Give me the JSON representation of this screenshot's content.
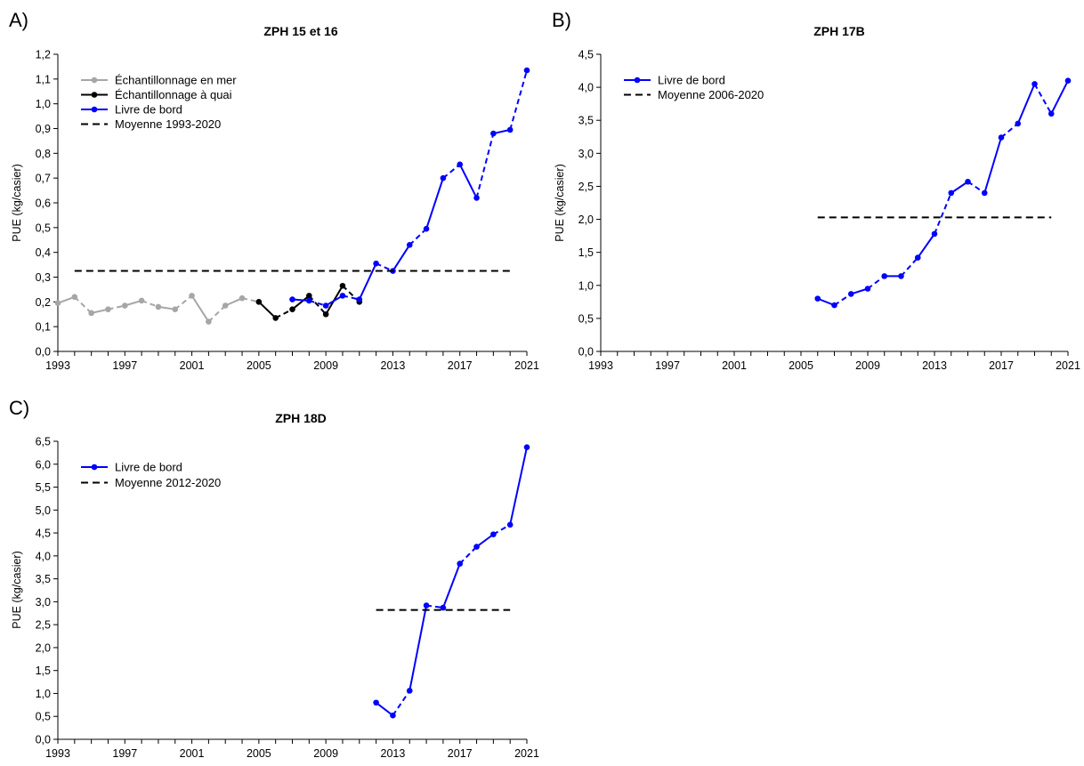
{
  "chart_data": [
    {
      "type": "line",
      "panel_label": "A)",
      "title": "ZPH 15 et 16",
      "xlabel": "",
      "ylabel": "PUE (kg/casier)",
      "xlim": [
        1993,
        2021
      ],
      "ylim": [
        0,
        1.2
      ],
      "xticks": [
        1993,
        1994,
        1995,
        1996,
        1997,
        1998,
        1999,
        2000,
        2001,
        2002,
        2003,
        2004,
        2005,
        2006,
        2007,
        2008,
        2009,
        2010,
        2011,
        2012,
        2013,
        2014,
        2015,
        2016,
        2017,
        2018,
        2019,
        2020,
        2021
      ],
      "xtick_labels": [
        "1993",
        "1997",
        "2001",
        "2005",
        "2009",
        "2013",
        "2017",
        "2021"
      ],
      "xtick_label_values": [
        1993,
        1997,
        2001,
        2005,
        2009,
        2013,
        2017,
        2021
      ],
      "yticks": [
        0,
        0.1,
        0.2,
        0.3,
        0.4,
        0.5,
        0.6,
        0.7,
        0.8,
        0.9,
        1.0,
        1.1,
        1.2
      ],
      "ytick_labels": [
        "0,0",
        "0,1",
        "0,2",
        "0,3",
        "0,4",
        "0,5",
        "0,6",
        "0,7",
        "0,8",
        "0,9",
        "1,0",
        "1,1",
        "1,2"
      ],
      "legend_position": "top-left",
      "series": [
        {
          "name": "Échantillonnage en mer",
          "color": "#a6a6a6",
          "marker": "circle",
          "style": "mixed",
          "x": [
            1993,
            1994,
            1995,
            1996,
            1997,
            1998,
            1999,
            2000,
            2001,
            2002,
            2003,
            2004,
            2005
          ],
          "y": [
            0.195,
            0.22,
            0.155,
            0.17,
            0.185,
            0.205,
            0.18,
            0.17,
            0.225,
            0.12,
            0.185,
            0.215,
            0.2
          ]
        },
        {
          "name": "Échantillonnage à quai",
          "color": "#000000",
          "marker": "circle",
          "style": "mixed",
          "x": [
            2005,
            2006,
            2007,
            2008,
            2009,
            2010,
            2011
          ],
          "y": [
            0.2,
            0.135,
            0.17,
            0.225,
            0.15,
            0.265,
            0.2
          ]
        },
        {
          "name": "Livre de bord",
          "color": "#0000ff",
          "marker": "circle",
          "style": "mixed",
          "x": [
            2007,
            2008,
            2009,
            2010,
            2011,
            2012,
            2013,
            2014,
            2015,
            2016,
            2017,
            2018,
            2019,
            2020,
            2021
          ],
          "y": [
            0.21,
            0.205,
            0.185,
            0.225,
            0.21,
            0.355,
            0.325,
            0.43,
            0.495,
            0.7,
            0.755,
            0.62,
            0.88,
            0.895,
            1.135
          ]
        },
        {
          "name": "Moyenne 1993-2020",
          "color": "#000000",
          "marker": "none",
          "style": "dashed",
          "x": [
            1994,
            2020
          ],
          "y": [
            0.325,
            0.325
          ]
        }
      ]
    },
    {
      "type": "line",
      "panel_label": "B)",
      "title": "ZPH 17B",
      "xlabel": "",
      "ylabel": "PUE (kg/casier)",
      "xlim": [
        1993,
        2021
      ],
      "ylim": [
        0,
        4.5
      ],
      "xticks": [
        1993,
        1994,
        1995,
        1996,
        1997,
        1998,
        1999,
        2000,
        2001,
        2002,
        2003,
        2004,
        2005,
        2006,
        2007,
        2008,
        2009,
        2010,
        2011,
        2012,
        2013,
        2014,
        2015,
        2016,
        2017,
        2018,
        2019,
        2020,
        2021
      ],
      "xtick_labels": [
        "1993",
        "1997",
        "2001",
        "2005",
        "2009",
        "2013",
        "2017",
        "2021"
      ],
      "xtick_label_values": [
        1993,
        1997,
        2001,
        2005,
        2009,
        2013,
        2017,
        2021
      ],
      "yticks": [
        0,
        0.5,
        1.0,
        1.5,
        2.0,
        2.5,
        3.0,
        3.5,
        4.0,
        4.5
      ],
      "ytick_labels": [
        "0,0",
        "0,5",
        "1,0",
        "1,5",
        "2,0",
        "2,5",
        "3,0",
        "3,5",
        "4,0",
        "4,5"
      ],
      "legend_position": "top-left",
      "series": [
        {
          "name": "Livre de bord",
          "color": "#0000ff",
          "marker": "circle",
          "style": "mixed",
          "x": [
            2006,
            2007,
            2008,
            2009,
            2010,
            2011,
            2012,
            2013,
            2014,
            2015,
            2016,
            2017,
            2018,
            2019,
            2020,
            2021
          ],
          "y": [
            0.8,
            0.7,
            0.87,
            0.95,
            1.14,
            1.14,
            1.42,
            1.78,
            2.4,
            2.57,
            2.4,
            3.24,
            3.45,
            4.05,
            3.6,
            4.1
          ]
        },
        {
          "name": "Moyenne 2006-2020",
          "color": "#000000",
          "marker": "none",
          "style": "dashed",
          "x": [
            2006,
            2020
          ],
          "y": [
            2.03,
            2.03
          ]
        }
      ]
    },
    {
      "type": "line",
      "panel_label": "C)",
      "title": "ZPH 18D",
      "xlabel": "",
      "ylabel": "PUE (kg/casier)",
      "xlim": [
        1993,
        2021
      ],
      "ylim": [
        0,
        6.5
      ],
      "xticks": [
        1993,
        1994,
        1995,
        1996,
        1997,
        1998,
        1999,
        2000,
        2001,
        2002,
        2003,
        2004,
        2005,
        2006,
        2007,
        2008,
        2009,
        2010,
        2011,
        2012,
        2013,
        2014,
        2015,
        2016,
        2017,
        2018,
        2019,
        2020,
        2021
      ],
      "xtick_labels": [
        "1993",
        "1997",
        "2001",
        "2005",
        "2009",
        "2013",
        "2017",
        "2021"
      ],
      "xtick_label_values": [
        1993,
        1997,
        2001,
        2005,
        2009,
        2013,
        2017,
        2021
      ],
      "yticks": [
        0,
        0.5,
        1.0,
        1.5,
        2.0,
        2.5,
        3.0,
        3.5,
        4.0,
        4.5,
        5.0,
        5.5,
        6.0,
        6.5
      ],
      "ytick_labels": [
        "0,0",
        "0,5",
        "1,0",
        "1,5",
        "2,0",
        "2,5",
        "3,0",
        "3,5",
        "4,0",
        "4,5",
        "5,0",
        "5,5",
        "6,0",
        "6,5"
      ],
      "legend_position": "top-left",
      "series": [
        {
          "name": "Livre de bord",
          "color": "#0000ff",
          "marker": "circle",
          "style": "mixed",
          "x": [
            2012,
            2013,
            2014,
            2015,
            2016,
            2017,
            2018,
            2019,
            2020,
            2021
          ],
          "y": [
            0.8,
            0.52,
            1.06,
            2.92,
            2.87,
            3.83,
            4.2,
            4.47,
            4.68,
            6.37
          ]
        },
        {
          "name": "Moyenne 2012-2020",
          "color": "#000000",
          "marker": "none",
          "style": "dashed",
          "x": [
            2012,
            2020
          ],
          "y": [
            2.82,
            2.82
          ]
        }
      ]
    }
  ]
}
